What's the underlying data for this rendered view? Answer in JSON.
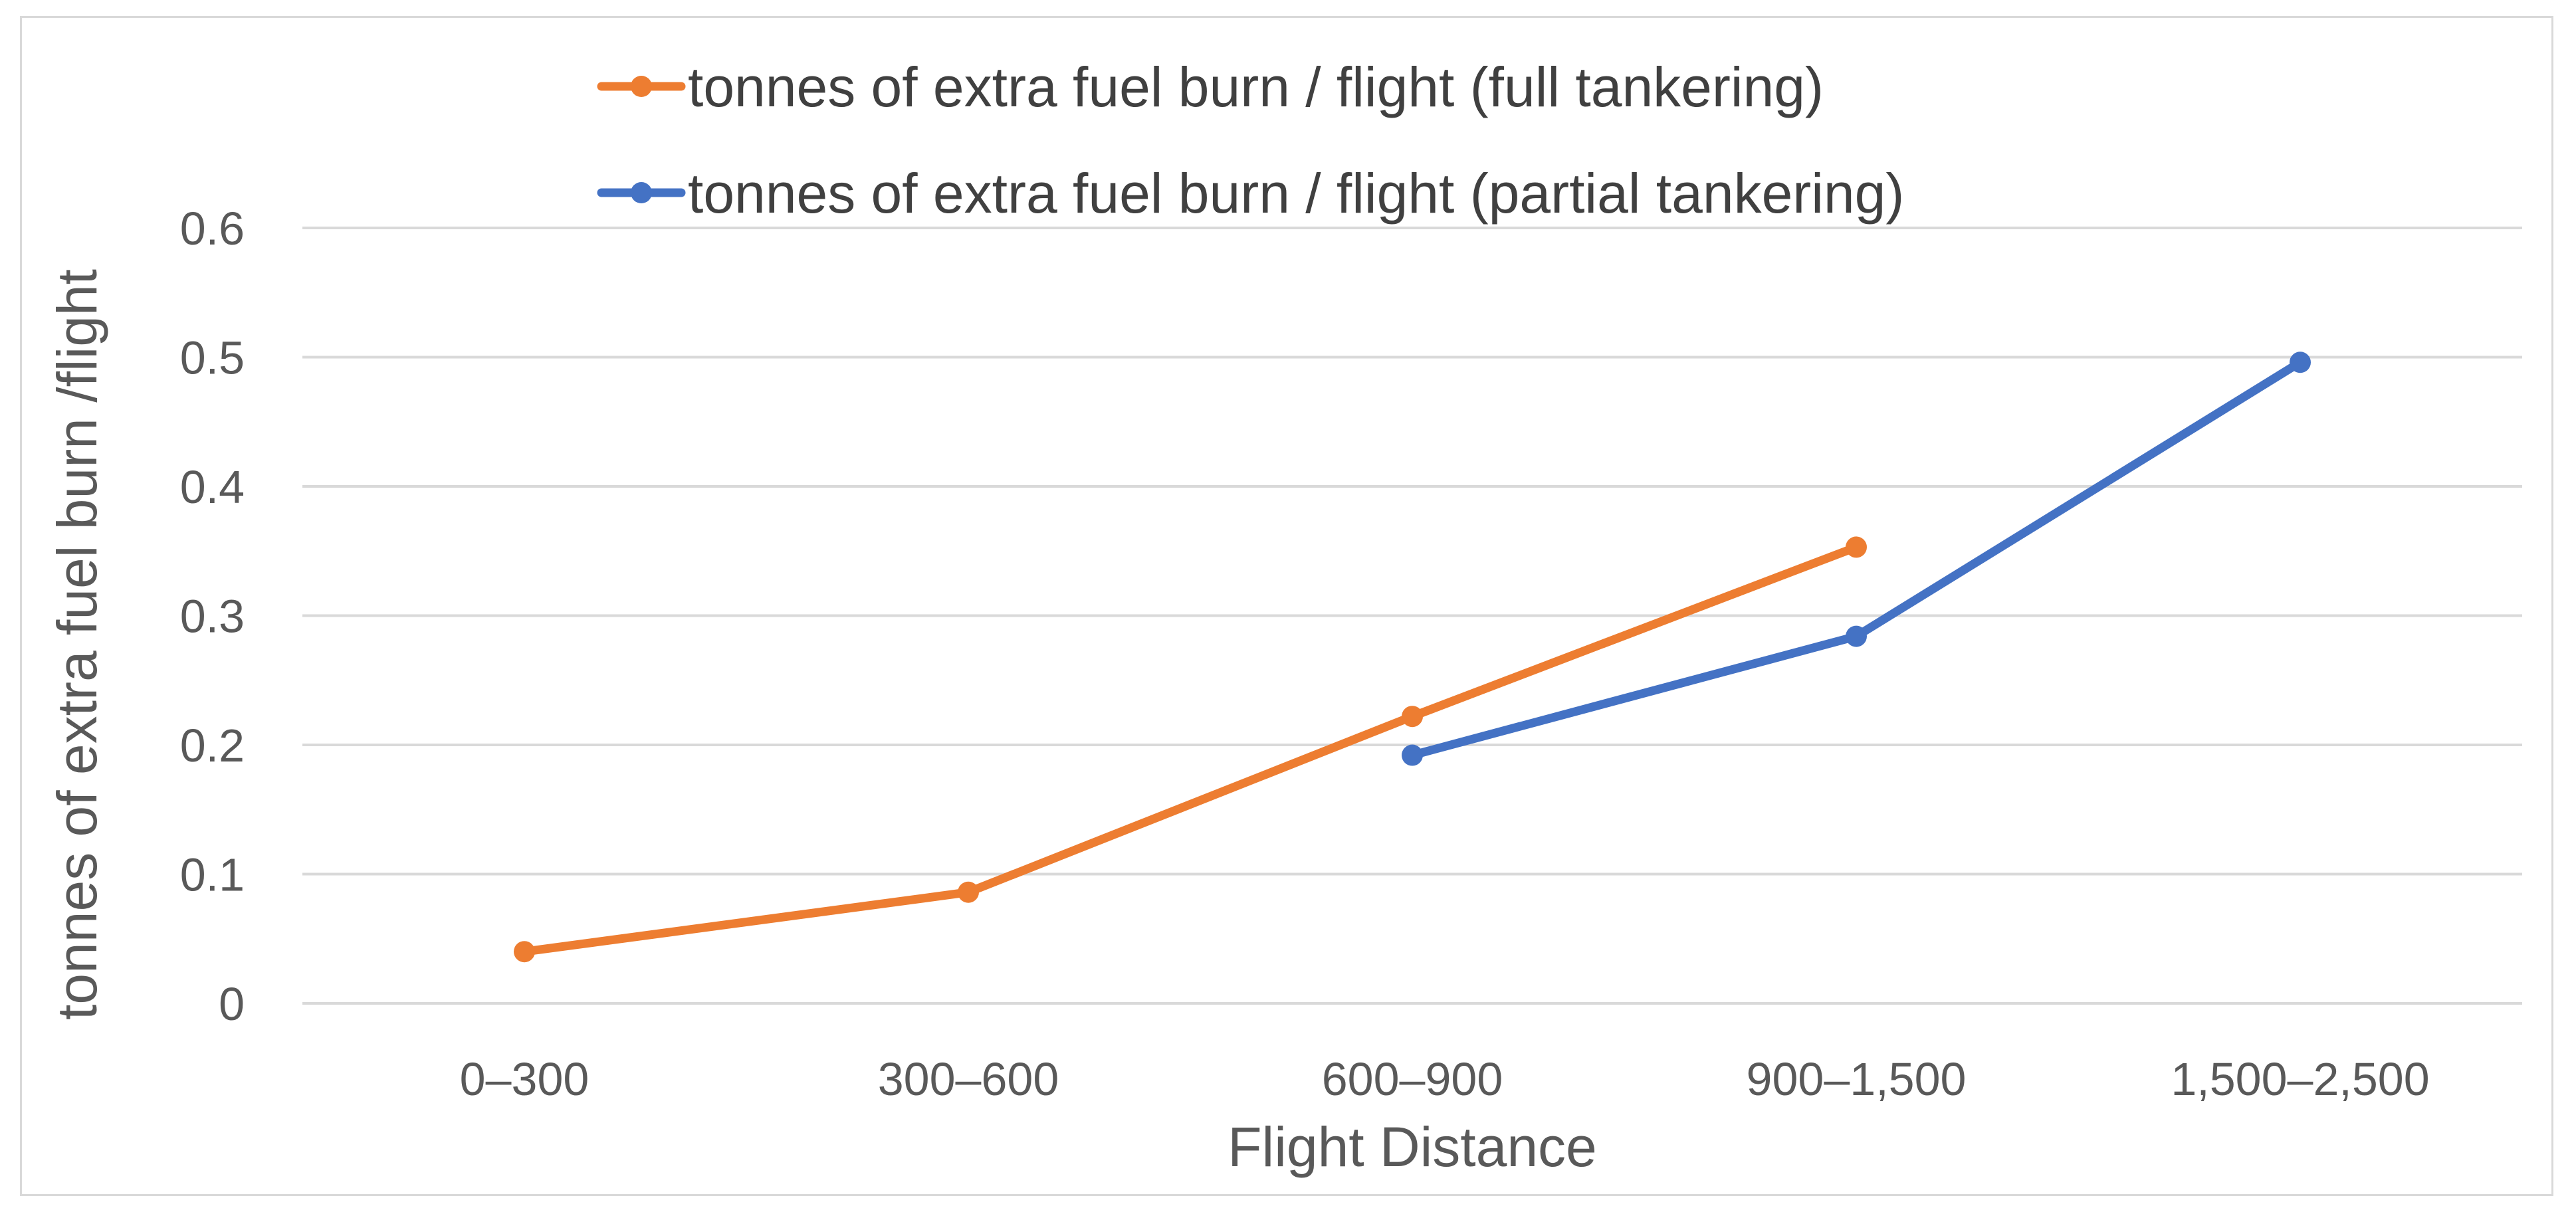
{
  "chart_data": {
    "type": "line",
    "title": "",
    "xlabel": "Flight Distance",
    "ylabel": "tonnes of extra fuel burn /flight",
    "categories": [
      "0–300",
      "300–600",
      "600–900",
      "900–1,500",
      "1,500–2,500"
    ],
    "ylim": [
      0,
      0.6
    ],
    "yticks": [
      "0",
      "0.1",
      "0.2",
      "0.3",
      "0.4",
      "0.5",
      "0.6"
    ],
    "ytick_values": [
      0,
      0.1,
      0.2,
      0.3,
      0.4,
      0.5,
      0.6
    ],
    "grid": true,
    "legend_position": "top",
    "series": [
      {
        "name": "tonnes of extra fuel burn / flight (full tankering)",
        "color": "#ED7D31",
        "values": [
          0.04,
          0.086,
          0.222,
          0.353,
          null
        ]
      },
      {
        "name": "tonnes of extra fuel burn / flight (partial tankering)",
        "color": "#4472C4",
        "values": [
          null,
          null,
          0.192,
          0.284,
          0.496
        ]
      }
    ]
  }
}
